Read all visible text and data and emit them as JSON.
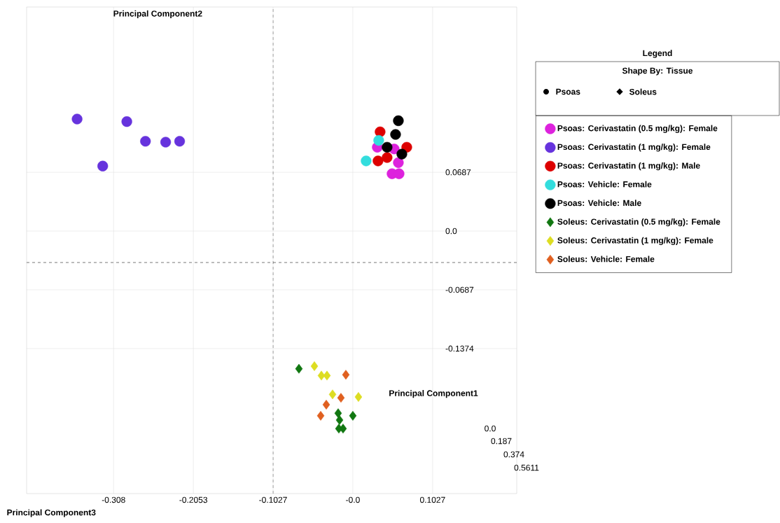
{
  "chart_data": {
    "type": "scatter",
    "xlabel": "Principal Component1",
    "ylabel": "Principal Component2",
    "legend_title": "Legend",
    "xlim": [
      -0.42,
      0.211
    ],
    "ylim": [
      -0.307,
      0.262
    ],
    "xticks": [
      -0.308,
      -0.2053,
      -0.1027,
      {
        "value": 0,
        "label": "-0.0"
      },
      0.1027
    ],
    "yticks": [
      0.0687,
      {
        "value": 0,
        "label": "0.0"
      },
      -0.0687,
      -0.1374
    ],
    "grid": true,
    "legend": "right",
    "ref_lines": [
      {
        "axis": "x",
        "value": -0.1027,
        "color": "#000000",
        "line_style": "dashed"
      },
      {
        "axis": "y",
        "value": -0.0368,
        "color": "#000000",
        "line_style": "dashed"
      }
    ],
    "annotations": [
      "Principal Component3",
      "0.0",
      "0.187",
      "0.374",
      "0.5611",
      "Shape By: Tissue",
      "Psoas",
      "Soleus"
    ],
    "series": [
      {
        "name": "Psoas: Cerivastatin (0.5 mg/kg): Female",
        "color": "#dd22dd",
        "marker": "circle",
        "x": [
          0.0315,
          0.0532,
          null,
          0.0586,
          0.0505,
          0.0595
        ],
        "values": [
          0.098,
          0.096,
          null,
          0.08,
          0.067,
          0.067
        ]
      },
      {
        "name": "Psoas: Cerivastatin (1 mg/kg): Female",
        "color": "#6633dd",
        "marker": "circle",
        "x": [
          -0.355,
          -0.291,
          -0.267,
          -0.241,
          -0.223,
          -0.322
        ],
        "values": [
          0.131,
          0.128,
          0.105,
          0.104,
          0.105,
          0.076
        ]
      },
      {
        "name": "Psoas: Cerivastatin (1 mg/kg): Male",
        "color": "#dd0000",
        "marker": "circle",
        "x": [
          0.0351,
          null,
          0.0694,
          0.0324,
          0.0441
        ],
        "values": [
          0.116,
          null,
          0.098,
          0.082,
          0.086
        ]
      },
      {
        "name": "Psoas: Vehicle: Female",
        "color": "#33dddd",
        "marker": "circle",
        "x": [
          0.0333,
          0.0171
        ],
        "values": [
          0.106,
          0.082
        ]
      },
      {
        "name": "Psoas: Vehicle: Male",
        "color": "#000000",
        "marker": "circle",
        "x": [
          0.0586,
          0.055,
          0.0441,
          0.0631
        ],
        "values": [
          0.129,
          0.113,
          0.098,
          0.09
        ]
      },
      {
        "name": "Soleus: Cerivastatin (0.5 mg/kg): Female",
        "color": "#117711",
        "marker": "diamond",
        "x": [
          -0.0694,
          -0.0189,
          0.0,
          -0.0171,
          null,
          -0.0126,
          -0.018
        ],
        "values": [
          -0.161,
          -0.213,
          -0.216,
          -0.221,
          null,
          -0.231,
          -0.231
        ]
      },
      {
        "name": "Soleus: Cerivastatin (1 mg/kg): Female",
        "color": "#dddd22",
        "marker": "diamond",
        "x": [
          -0.0495,
          -0.0405,
          -0.0333,
          -0.0261,
          0.0072
        ],
        "values": [
          -0.158,
          -0.169,
          -0.169,
          -0.191,
          -0.194
        ]
      },
      {
        "name": "Soleus: Vehicle: Female",
        "color": "#e06020",
        "marker": "diamond",
        "x": [
          -0.009,
          -0.0153,
          -0.0342,
          -0.0414
        ],
        "values": [
          -0.168,
          -0.195,
          -0.203,
          -0.216
        ]
      }
    ]
  }
}
